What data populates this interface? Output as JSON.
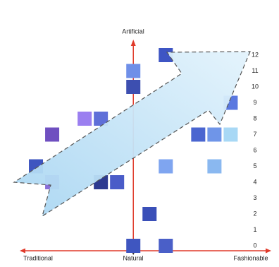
{
  "chart_data": {
    "type": "scatter",
    "y_top_label": "Artificial",
    "y_bottom_label": "Natural",
    "x_left_label": "Traditional",
    "x_right_label": "Fashionable",
    "x": [
      0,
      2,
      1,
      0,
      0,
      2,
      -5,
      -3,
      -2,
      -6,
      -5,
      -2,
      -1,
      2,
      5,
      4,
      5,
      6,
      6
    ],
    "values": [
      0,
      0,
      2,
      11,
      10,
      12,
      7,
      8,
      8,
      5,
      4,
      4,
      4,
      5,
      5,
      7,
      7,
      7,
      9
    ],
    "colors": [
      "#3f56c0",
      "#4a5fc8",
      "#3a4fb8",
      "#6f8fe8",
      "#3d4fb0",
      "#3e55c4",
      "#6f4fc0",
      "#9b7ff0",
      "#5f6fd8",
      "#3e55c0",
      "#8a6fd8",
      "#2d3a90",
      "#4a5cc8",
      "#7fa5f0",
      "#8ab8f0",
      "#4a65d0",
      "#6f95e8",
      "#a8d8f5",
      "#5a78e0"
    ],
    "xlim": [
      -7,
      8.5
    ],
    "ylim": [
      0,
      12
    ],
    "yticks": [
      0,
      1,
      2,
      3,
      4,
      5,
      6,
      7,
      8,
      9,
      10,
      11,
      12
    ],
    "axis_color": "#e03a2a"
  }
}
